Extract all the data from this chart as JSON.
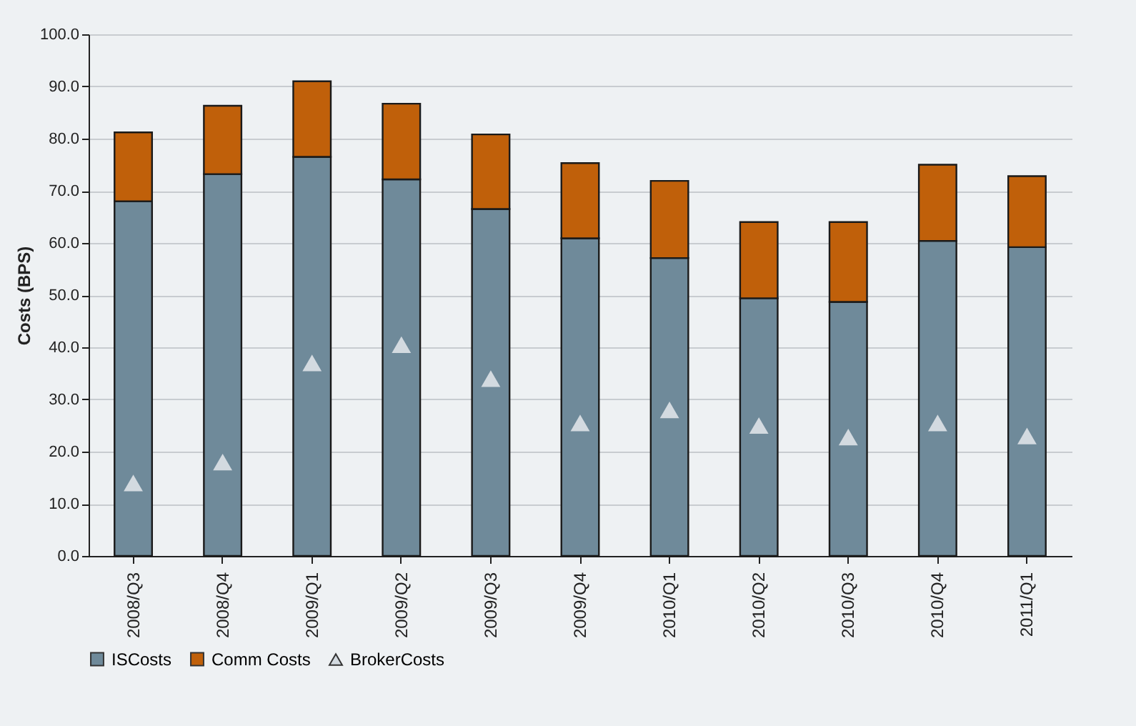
{
  "chart_data": {
    "type": "bar",
    "ylabel": "Costs (BPS)",
    "categories": [
      "2008/Q3",
      "2008/Q4",
      "2009/Q1",
      "2009/Q2",
      "2009/Q3",
      "2009/Q4",
      "2010/Q1",
      "2010/Q2",
      "2010/Q3",
      "2010/Q4",
      "2011/Q1"
    ],
    "stacked": true,
    "series": [
      {
        "name": "ISCosts",
        "color": "#6f8a9a",
        "values": [
          68.0,
          73.2,
          76.5,
          72.2,
          66.5,
          60.9,
          57.1,
          49.4,
          48.7,
          60.4,
          59.2
        ]
      },
      {
        "name": "Comm Costs",
        "color": "#c0600a",
        "values": [
          13.2,
          13.1,
          14.5,
          14.5,
          14.3,
          14.4,
          14.8,
          14.6,
          15.3,
          14.6,
          13.6
        ]
      },
      {
        "name": "BrokerCosts",
        "type": "scatter",
        "marker": "triangle",
        "color": "#d3dae0",
        "values": [
          14.0,
          18.0,
          37.0,
          40.5,
          34.0,
          25.5,
          28.0,
          25.0,
          22.8,
          25.5,
          23.0
        ]
      }
    ],
    "ylim": [
      0,
      100
    ],
    "yticks": [
      {
        "value": 0,
        "label": "0.0"
      },
      {
        "value": 10,
        "label": "10.0"
      },
      {
        "value": 20,
        "label": "20.0"
      },
      {
        "value": 30,
        "label": "30.0"
      },
      {
        "value": 40,
        "label": "40.0"
      },
      {
        "value": 50,
        "label": "50.0"
      },
      {
        "value": 60,
        "label": "60.0"
      },
      {
        "value": 70,
        "label": "70.0"
      },
      {
        "value": 80,
        "label": "80.0"
      },
      {
        "value": 90,
        "label": "90.0"
      },
      {
        "value": 100,
        "label": "100.0"
      }
    ],
    "grid": "y",
    "legend": "bottom"
  }
}
